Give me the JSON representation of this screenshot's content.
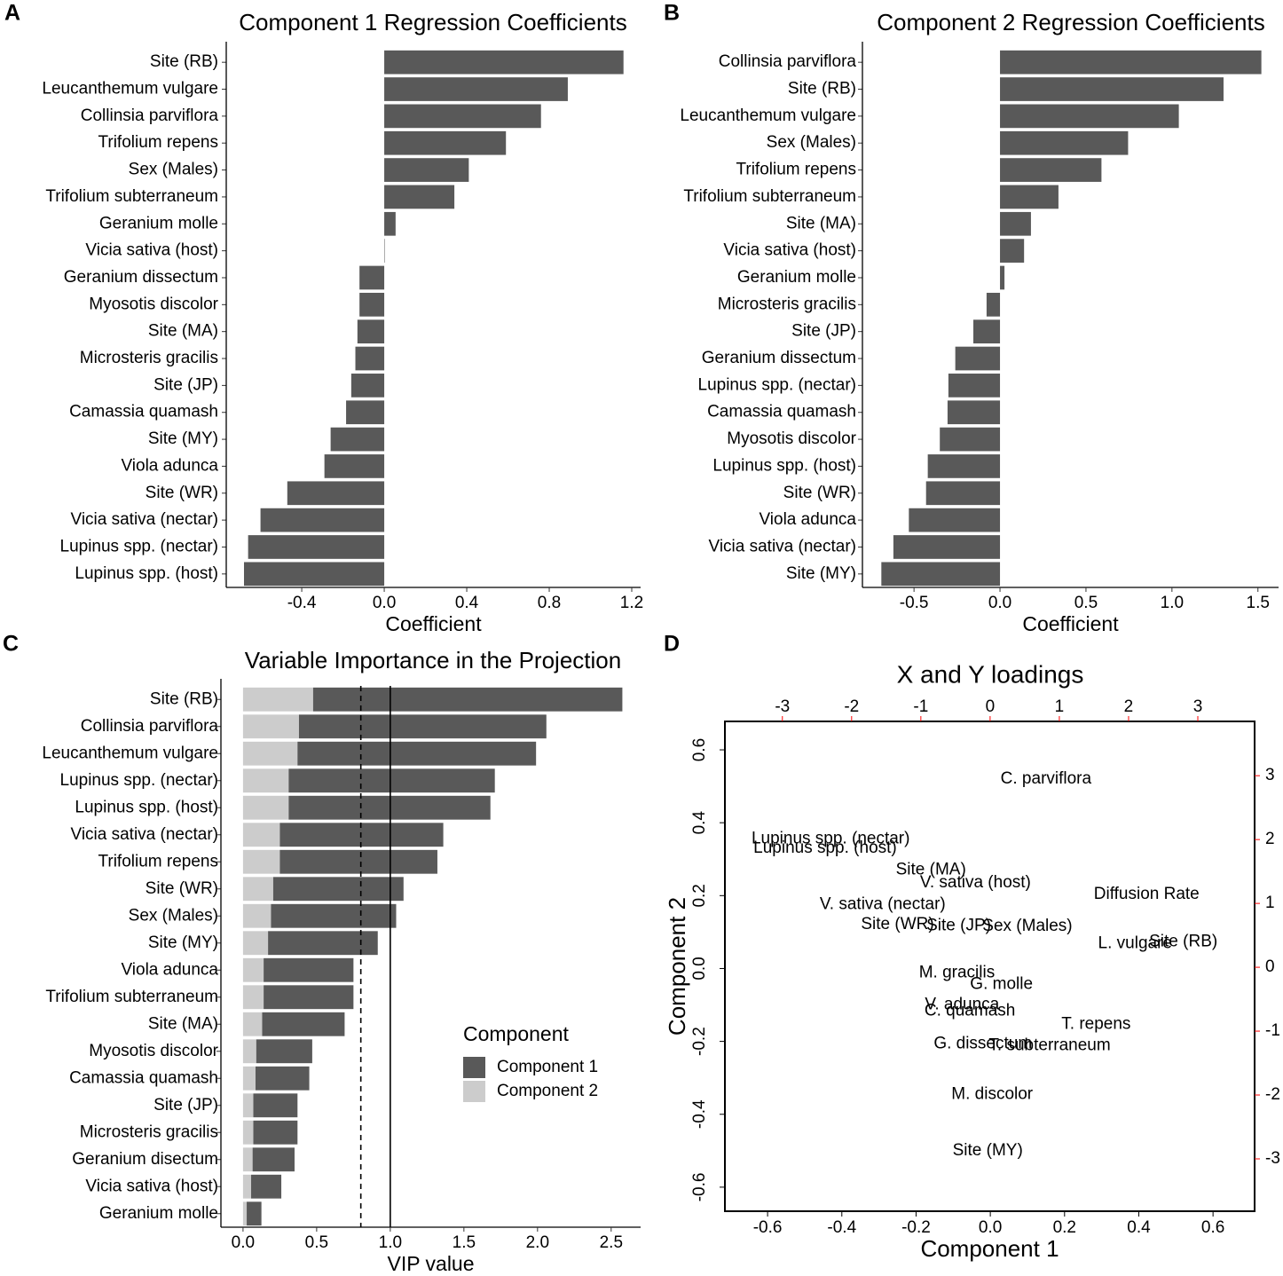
{
  "chart_data": [
    {
      "type": "hbar",
      "panel_label": "A",
      "title": "Component 1 Regression Coefficients",
      "xlabel": "Coefficient",
      "color": "#595959",
      "categories": [
        "Site (RB)",
        "Leucanthemum vulgare",
        "Collinsia parviflora",
        "Trifolium repens",
        "Sex (Males)",
        "Trifolium subterraneum",
        "Geranium molle",
        "Vicia sativa (host)",
        "Geranium dissectum",
        "Myosotis discolor",
        "Site (MA)",
        "Microsteris gracilis",
        "Site (JP)",
        "Camassia quamash",
        "Site (MY)",
        "Viola adunca",
        "Site (WR)",
        "Vicia sativa (nectar)",
        "Lupinus spp. (nectar)",
        "Lupinus spp. (host)"
      ],
      "values": [
        1.16,
        0.89,
        0.76,
        0.59,
        0.41,
        0.34,
        0.055,
        0.002,
        -0.12,
        -0.12,
        -0.13,
        -0.14,
        -0.16,
        -0.185,
        -0.26,
        -0.29,
        -0.47,
        -0.6,
        -0.66,
        -0.68
      ],
      "xlim": [
        -0.766,
        1.243
      ],
      "xticks": [
        -0.4,
        {
          "value": 0,
          "label": "0.0"
        },
        0.4,
        0.8,
        1.2
      ]
    },
    {
      "type": "hbar",
      "panel_label": "B",
      "title": "Component 2 Regression Coefficients",
      "xlabel": "Coefficient",
      "color": "#595959",
      "categories": [
        "Collinsia parviflora",
        "Site (RB)",
        "Leucanthemum vulgare",
        "Sex (Males)",
        "Trifolium repens",
        "Trifolium subterraneum",
        "Site (MA)",
        "Vicia sativa (host)",
        "Geranium molle",
        "Microsteris gracilis",
        "Site (JP)",
        "Geranium dissectum",
        "Lupinus spp. (nectar)",
        "Camassia quamash",
        "Myosotis discolor",
        "Lupinus spp. (host)",
        "Site (WR)",
        "Viola adunca",
        "Vicia sativa (nectar)",
        "Site (MY)"
      ],
      "values": [
        1.52,
        1.3,
        1.04,
        0.745,
        0.59,
        0.34,
        0.18,
        0.14,
        0.026,
        -0.078,
        -0.155,
        -0.26,
        -0.3,
        -0.305,
        -0.35,
        -0.42,
        -0.43,
        -0.53,
        -0.62,
        -0.69
      ],
      "xlim": [
        -0.8,
        1.62
      ],
      "xticks": [
        -0.5,
        {
          "value": 0,
          "label": "0.0"
        },
        0.5,
        {
          "value": 1,
          "label": "1.0"
        },
        1.5
      ]
    },
    {
      "type": "hbar",
      "panel_label": "C",
      "title": "Variable Importance in the Projection",
      "xlabel": "VIP value",
      "legend_title": "Component",
      "categories": [
        "Site (RB)",
        "Collinsia parviflora",
        "Leucanthemum vulgare",
        "Lupinus spp. (nectar)",
        "Lupinus spp. (host)",
        "Vicia sativa (nectar)",
        "Trifolium repens",
        "Site (WR)",
        "Sex (Males)",
        "Site (MY)",
        "Viola adunca",
        "Trifolium subterraneum",
        "Site (MA)",
        "Myosotis discolor",
        "Camassia quamash",
        "Site (JP)",
        "Microsteris gracilis",
        "Geranium disectum",
        "Vicia sativa (host)",
        "Geranium molle"
      ],
      "series": [
        {
          "name": "Component 1",
          "color": "#595959",
          "values": [
            2.1,
            1.68,
            1.62,
            1.4,
            1.37,
            1.11,
            1.07,
            0.885,
            0.85,
            0.745,
            0.61,
            0.61,
            0.56,
            0.38,
            0.365,
            0.3,
            0.3,
            0.285,
            0.205,
            0.1
          ]
        },
        {
          "name": "Component 2",
          "color": "#cccccc",
          "values": [
            0.476,
            0.38,
            0.37,
            0.31,
            0.31,
            0.25,
            0.25,
            0.205,
            0.19,
            0.17,
            0.14,
            0.14,
            0.13,
            0.09,
            0.085,
            0.07,
            0.07,
            0.065,
            0.055,
            0.025
          ]
        }
      ],
      "reference_lines": [
        {
          "value": 0.8,
          "style": "dashed"
        },
        {
          "value": 1,
          "style": "solid"
        }
      ],
      "xlim": [
        -0.15,
        2.7
      ],
      "xticks": [
        {
          "value": 0,
          "label": "0.0"
        },
        0.5,
        {
          "value": 1,
          "label": "1.0"
        },
        1.5,
        {
          "value": 2,
          "label": "2.0"
        },
        2.5
      ]
    },
    {
      "type": "scatter",
      "panel_label": "D",
      "title": "X and Y loadings",
      "xlabel": "Component 1",
      "ylabel": "Component 2",
      "xlim": [
        -0.715,
        0.712
      ],
      "xticks": [
        -0.6,
        -0.4,
        -0.2,
        {
          "value": 0,
          "label": "0.0"
        },
        0.2,
        0.4,
        0.6
      ],
      "ylim": [
        -0.666,
        0.678
      ],
      "yticks": [
        -0.6,
        -0.4,
        -0.2,
        {
          "value": 0,
          "label": "0.0"
        },
        0.2,
        0.4,
        0.6
      ],
      "points": [
        {
          "label": "C. parviflora",
          "x": 0.15,
          "y": 0.52
        },
        {
          "label": "Lupinus spp. (nectar)",
          "x": -0.43,
          "y": 0.355
        },
        {
          "label": "Lupinus spp. (host)",
          "x": -0.445,
          "y": 0.33
        },
        {
          "label": "Site (MA)",
          "x": -0.16,
          "y": 0.27
        },
        {
          "label": "V. sativa (host)",
          "x": -0.04,
          "y": 0.235
        },
        {
          "label": "V. sativa (nectar)",
          "x": -0.29,
          "y": 0.175
        },
        {
          "label": "Site (WR)",
          "x": -0.25,
          "y": 0.12
        },
        {
          "label": "Site (JP)",
          "x": -0.085,
          "y": 0.117
        },
        {
          "label": "Sex (Males)",
          "x": 0.1,
          "y": 0.115
        },
        {
          "label": "L. vulgare",
          "x": 0.39,
          "y": 0.068
        },
        {
          "label": "Site (RB)",
          "x": 0.52,
          "y": 0.073
        },
        {
          "label": "M. gracilis",
          "x": -0.09,
          "y": -0.012
        },
        {
          "label": "G. molle",
          "x": 0.03,
          "y": -0.044
        },
        {
          "label": "V. adunca",
          "x": -0.076,
          "y": -0.1
        },
        {
          "label": "C. quamash",
          "x": -0.055,
          "y": -0.117
        },
        {
          "label": "T. repens",
          "x": 0.285,
          "y": -0.154
        },
        {
          "label": "G. dissectum",
          "x": -0.02,
          "y": -0.207
        },
        {
          "label": "T. subterraneum",
          "x": 0.16,
          "y": -0.212
        },
        {
          "label": "M. discolor",
          "x": 0.005,
          "y": -0.346
        },
        {
          "label": "Site (MY)",
          "x": -0.007,
          "y": -0.5
        }
      ],
      "secondary_color": "#ff0000",
      "x2lim": [
        -3.83,
        3.82
      ],
      "x2ticks": [
        -3,
        -2,
        -1,
        0,
        1,
        2,
        3
      ],
      "y2lim": [
        -3.82,
        3.85
      ],
      "y2ticks": [
        -3,
        -2,
        -1,
        0,
        1,
        2,
        3
      ],
      "secondary_points": [
        {
          "label": "Diffusion Rate",
          "x": 2.26,
          "y": 1.14
        }
      ]
    }
  ]
}
